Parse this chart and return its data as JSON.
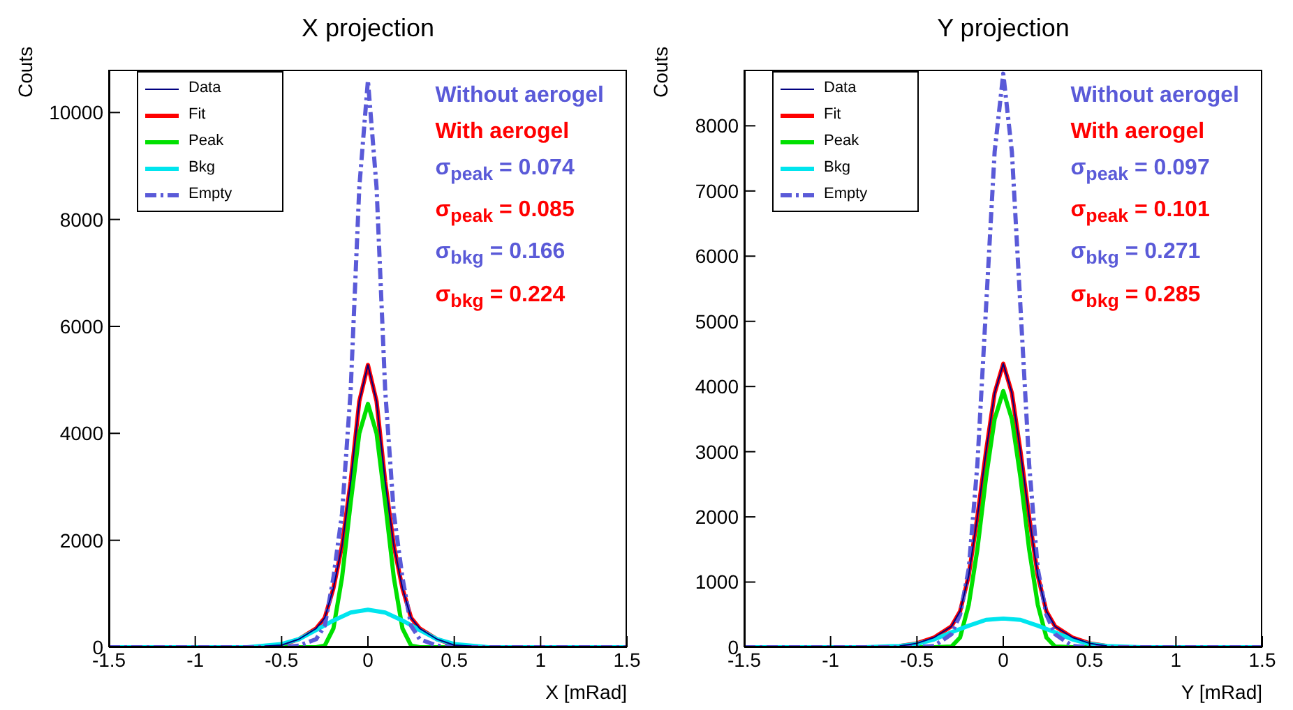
{
  "chart_data": [
    {
      "type": "line",
      "title": "X projection",
      "xlabel": "X [mRad]",
      "ylabel": "Couts",
      "xlim": [
        -1.5,
        1.5
      ],
      "xticks": [
        -1.5,
        -1,
        -0.5,
        0,
        0.5,
        1,
        1.5
      ],
      "ylim": [
        0,
        10800
      ],
      "yticks": [
        0,
        2000,
        4000,
        6000,
        8000,
        10000
      ],
      "legend": "top left",
      "grid": false,
      "marker": "none",
      "annotations": [
        "Without aerogel",
        "With aerogel",
        "σ$_{peak}$ = 0.074",
        "σ$_{peak}$ = 0.085",
        "σ$_{bkg}$ = 0.166",
        "σ$_{bkg}$ = 0.224"
      ],
      "series": [
        {
          "name": "Data",
          "color": "#000080",
          "line_style": "solid",
          "x": [
            -0.6,
            -0.5,
            -0.4,
            -0.3,
            -0.25,
            -0.2,
            -0.15,
            -0.1,
            -0.05,
            0,
            0.05,
            0.1,
            0.15,
            0.2,
            0.25,
            0.3,
            0.4,
            0.5,
            0.6
          ],
          "values": [
            20,
            40,
            150,
            350,
            550,
            1100,
            1900,
            3100,
            4600,
            5280,
            4600,
            3100,
            1900,
            1100,
            550,
            350,
            150,
            40,
            20
          ]
        },
        {
          "name": "Fit",
          "color": "#ff0000",
          "line_style": "solid",
          "x": [
            -0.6,
            -0.5,
            -0.4,
            -0.3,
            -0.25,
            -0.2,
            -0.15,
            -0.1,
            -0.05,
            0,
            0.05,
            0.1,
            0.15,
            0.2,
            0.25,
            0.3,
            0.4,
            0.5,
            0.6
          ],
          "values": [
            20,
            40,
            150,
            350,
            550,
            1100,
            1900,
            3100,
            4600,
            5280,
            4600,
            3100,
            1900,
            1100,
            550,
            350,
            150,
            40,
            20
          ]
        },
        {
          "name": "Peak",
          "color": "#00e000",
          "line_style": "solid",
          "x": [
            -1.5,
            -1,
            -0.5,
            -0.3,
            -0.25,
            -0.2,
            -0.15,
            -0.1,
            -0.05,
            0,
            0.05,
            0.1,
            0.15,
            0.2,
            0.25,
            0.3,
            0.5,
            1,
            1.5
          ],
          "values": [
            0,
            0,
            0,
            0,
            30,
            350,
            1300,
            2700,
            4000,
            4550,
            4000,
            2700,
            1300,
            350,
            30,
            0,
            0,
            0,
            0
          ]
        },
        {
          "name": "Bkg",
          "color": "#00e5ee",
          "line_style": "solid",
          "x": [
            -1.5,
            -1,
            -0.7,
            -0.5,
            -0.4,
            -0.3,
            -0.2,
            -0.1,
            0,
            0.1,
            0.2,
            0.3,
            0.4,
            0.5,
            0.7,
            1,
            1.5
          ],
          "values": [
            0,
            0,
            0,
            60,
            150,
            320,
            500,
            650,
            700,
            650,
            500,
            320,
            150,
            60,
            0,
            0,
            0
          ]
        },
        {
          "name": "Empty",
          "color": "#5a5ad8",
          "line_style": "dashed",
          "x": [
            -1.5,
            -1,
            -0.5,
            -0.4,
            -0.3,
            -0.25,
            -0.2,
            -0.15,
            -0.1,
            -0.05,
            0,
            0.05,
            0.1,
            0.15,
            0.2,
            0.25,
            0.3,
            0.4,
            0.5,
            1,
            1.5
          ],
          "values": [
            0,
            0,
            0,
            30,
            150,
            400,
            1300,
            2500,
            4800,
            8600,
            10600,
            8600,
            4800,
            2500,
            1300,
            400,
            150,
            30,
            0,
            0,
            0
          ]
        }
      ]
    },
    {
      "type": "line",
      "title": "Y projection",
      "xlabel": "Y [mRad]",
      "ylabel": "Couts",
      "xlim": [
        -1.5,
        1.5
      ],
      "xticks": [
        -1.5,
        -1,
        -0.5,
        0,
        0.5,
        1,
        1.5
      ],
      "ylim": [
        0,
        8860
      ],
      "yticks": [
        0,
        1000,
        2000,
        3000,
        4000,
        5000,
        6000,
        7000,
        8000
      ],
      "legend": "top left",
      "grid": false,
      "marker": "none",
      "annotations": [
        "Without aerogel",
        "With aerogel",
        "σ$_{peak}$ = 0.097",
        "σ$_{peak}$ = 0.101",
        "σ$_{bkg}$ = 0.271",
        "σ$_{bkg}$ = 0.285"
      ],
      "series": [
        {
          "name": "Data",
          "color": "#000080",
          "line_style": "solid",
          "x": [
            -0.6,
            -0.5,
            -0.4,
            -0.3,
            -0.25,
            -0.2,
            -0.15,
            -0.1,
            -0.05,
            0,
            0.05,
            0.1,
            0.15,
            0.2,
            0.25,
            0.3,
            0.4,
            0.5,
            0.6
          ],
          "values": [
            20,
            60,
            150,
            320,
            550,
            1100,
            2000,
            3000,
            3900,
            4350,
            3900,
            3000,
            2000,
            1100,
            550,
            320,
            150,
            60,
            20
          ]
        },
        {
          "name": "Fit",
          "color": "#ff0000",
          "line_style": "solid",
          "x": [
            -0.6,
            -0.5,
            -0.4,
            -0.3,
            -0.25,
            -0.2,
            -0.15,
            -0.1,
            -0.05,
            0,
            0.05,
            0.1,
            0.15,
            0.2,
            0.25,
            0.3,
            0.4,
            0.5,
            0.6
          ],
          "values": [
            20,
            60,
            150,
            320,
            550,
            1100,
            2000,
            3000,
            3900,
            4350,
            3900,
            3000,
            2000,
            1100,
            550,
            320,
            150,
            60,
            20
          ]
        },
        {
          "name": "Peak",
          "color": "#00e000",
          "line_style": "solid",
          "x": [
            -1.5,
            -1,
            -0.5,
            -0.4,
            -0.3,
            -0.25,
            -0.2,
            -0.15,
            -0.1,
            -0.05,
            0,
            0.05,
            0.1,
            0.15,
            0.2,
            0.25,
            0.3,
            0.4,
            0.5,
            1,
            1.5
          ],
          "values": [
            0,
            0,
            0,
            0,
            10,
            150,
            650,
            1500,
            2600,
            3500,
            3930,
            3500,
            2600,
            1500,
            650,
            150,
            10,
            0,
            0,
            0,
            0
          ]
        },
        {
          "name": "Bkg",
          "color": "#00e5ee",
          "line_style": "solid",
          "x": [
            -1.5,
            -1,
            -0.8,
            -0.6,
            -0.5,
            -0.4,
            -0.3,
            -0.2,
            -0.1,
            0,
            0.1,
            0.2,
            0.3,
            0.4,
            0.5,
            0.6,
            0.8,
            1,
            1.5
          ],
          "values": [
            0,
            0,
            0,
            20,
            50,
            120,
            230,
            330,
            420,
            440,
            420,
            330,
            230,
            120,
            50,
            20,
            0,
            0,
            0
          ]
        },
        {
          "name": "Empty",
          "color": "#5a5ad8",
          "line_style": "dashed",
          "x": [
            -1.5,
            -1,
            -0.5,
            -0.4,
            -0.3,
            -0.25,
            -0.2,
            -0.15,
            -0.1,
            -0.05,
            0,
            0.05,
            0.1,
            0.15,
            0.2,
            0.25,
            0.3,
            0.4,
            0.5,
            1,
            1.5
          ],
          "values": [
            0,
            0,
            0,
            20,
            200,
            500,
            1200,
            2800,
            5200,
            7600,
            8800,
            7600,
            5200,
            2800,
            1200,
            500,
            200,
            20,
            0,
            0,
            0
          ]
        }
      ]
    }
  ]
}
